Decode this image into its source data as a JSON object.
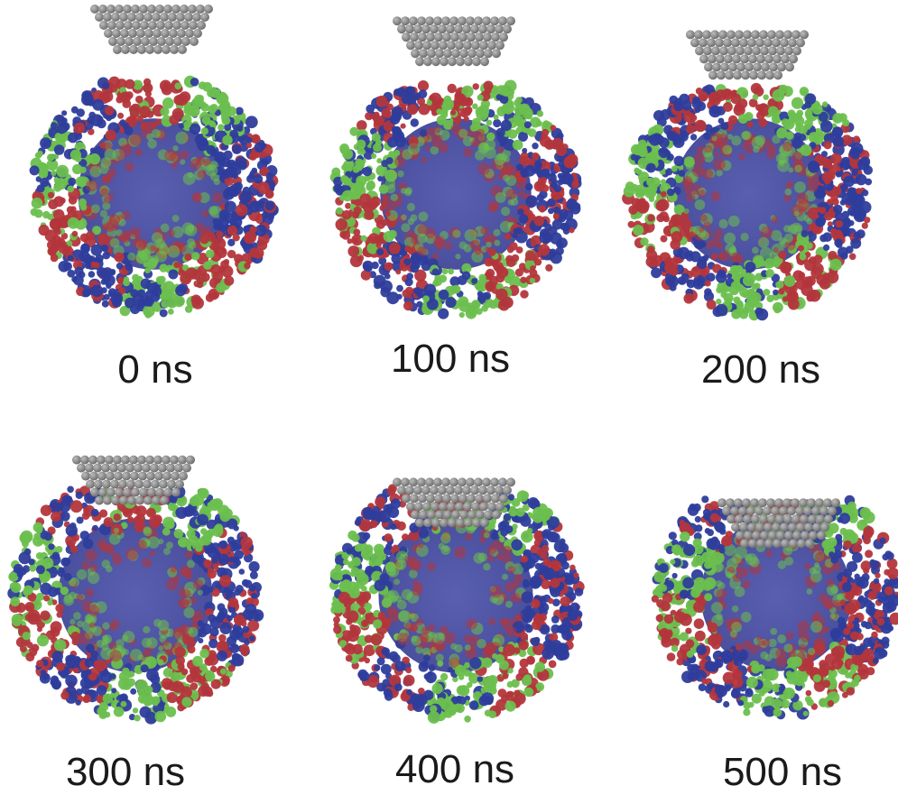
{
  "figure": {
    "frames": [
      {
        "time_label": "0 ns",
        "tip_indent": 0.0
      },
      {
        "time_label": "100 ns",
        "tip_indent": 0.1
      },
      {
        "time_label": "200 ns",
        "tip_indent": 0.2
      },
      {
        "time_label": "300 ns",
        "tip_indent": 0.3
      },
      {
        "time_label": "400 ns",
        "tip_indent": 0.45
      },
      {
        "time_label": "500 ns",
        "tip_indent": 0.6
      }
    ],
    "colors": {
      "protein_red": "#b3363c",
      "protein_green": "#6cbf4e",
      "protein_blue": "#2e3d9c",
      "core_blue": "#5a5fb0",
      "tip_gray": "#6f6f6f",
      "tip_highlight": "#bdbdbd"
    },
    "objects": {
      "capsid": "virus-capsid",
      "tip": "afm-tip"
    }
  }
}
